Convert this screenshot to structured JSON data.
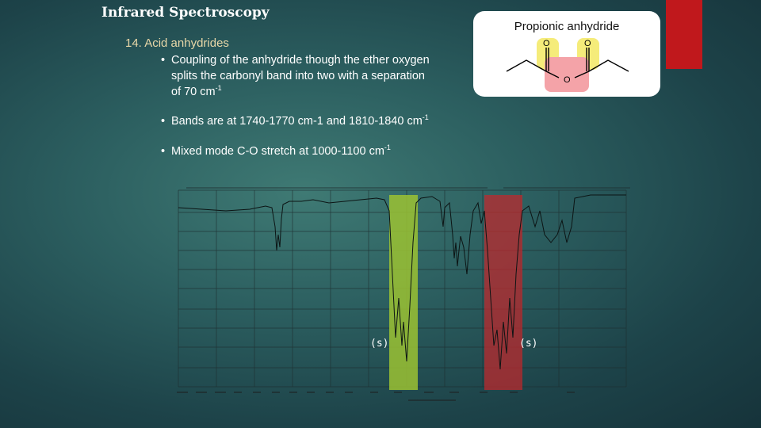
{
  "slide": {
    "title": "Infrared Spectroscopy",
    "heading": "14.  Acid anhydrides",
    "bullets": [
      {
        "text": "Coupling of the anhydride though the ether oxygen",
        "text2": "splits the carbonyl band into two with a separation",
        "text3": "of 70 cm",
        "sup": "-1"
      },
      {
        "text": "Bands are at 1740-1770 cm-1 and 1810-1840 cm",
        "sup": "-1"
      },
      {
        "text": "Mixed mode C-O stretch at 1000-1100 cm",
        "sup": "-1"
      }
    ],
    "bullet_glyph": "•"
  },
  "molecule": {
    "label": "Propionic anhydride",
    "atoms": {
      "o1": "O",
      "o2": "O",
      "o3": "O"
    },
    "highlight_colors": {
      "carbonyl": "#f5ec7a",
      "ether": "#f4a3a8"
    }
  },
  "spectrum": {
    "band_labels": {
      "left": "(s)",
      "right": "(s)"
    },
    "band_colors": {
      "green": "#9bc233",
      "red": "#c0282c"
    }
  }
}
